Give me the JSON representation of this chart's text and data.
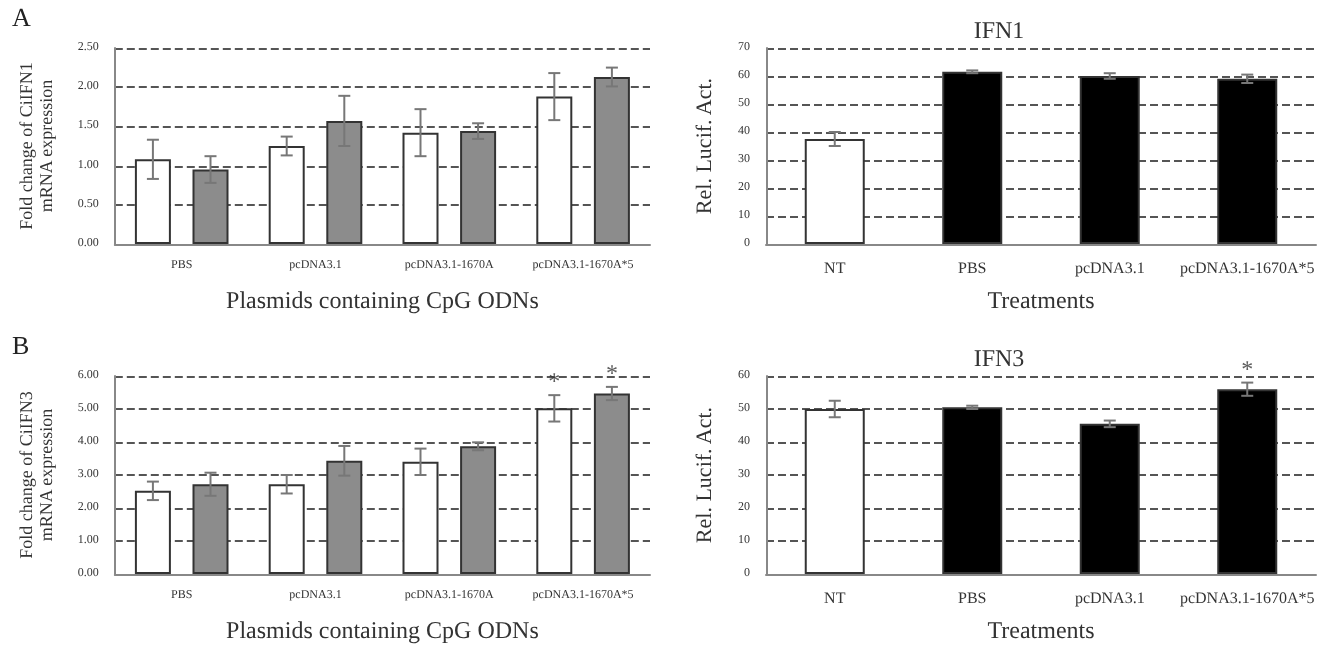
{
  "chart_data": [
    {
      "type": "bar",
      "ylabel": "Fold change of CiIFN1\nmRNA expression",
      "xlabel": "Plasmids containing CpG ODNs",
      "annotations": [
        "A"
      ],
      "categories": [
        "PBS",
        "pcDNA3.1",
        "pcDNA3.1-1670A",
        "pcDNA3.1-1670A*5"
      ],
      "series": [
        {
          "color": "#ffffff",
          "values": [
            1.08,
            1.25,
            1.42,
            1.88
          ],
          "errors": [
            0.25,
            0.12,
            0.3,
            0.3
          ]
        },
        {
          "color": "#8c8c8c",
          "values": [
            0.95,
            1.57,
            1.44,
            2.13
          ],
          "errors": [
            0.17,
            0.32,
            0.1,
            0.12
          ]
        }
      ],
      "ylim": [
        0,
        2.5
      ],
      "yticks": [
        {
          "value": 0,
          "label": "0.00"
        },
        {
          "value": 0.5,
          "label": "0.50"
        },
        {
          "value": 1,
          "label": "1.00"
        },
        {
          "value": 1.5,
          "label": "1.50"
        },
        {
          "value": 2,
          "label": "2.00"
        },
        {
          "value": 2.5,
          "label": "2.50"
        }
      ],
      "grid": "y"
    },
    {
      "type": "bar",
      "title": "IFN1",
      "xlabel": "Treatments",
      "ylabel": "Rel. Lucif. Act.",
      "categories": [
        "NT",
        "PBS",
        "pcDNA3.1",
        "pcDNA3.1-1670A*5"
      ],
      "values": [
        37.5,
        61.5,
        60,
        59
      ],
      "errors": [
        2.5,
        0.5,
        1,
        1.5
      ],
      "colors": [
        "#ffffff",
        "#000000",
        "#000000",
        "#000000"
      ],
      "ylim": [
        0,
        70
      ],
      "yticks": [
        0,
        10,
        20,
        30,
        40,
        50,
        60,
        70
      ],
      "grid": "y"
    },
    {
      "type": "bar",
      "ylabel": "Fold change of CiIFN3\nmRNA expression",
      "xlabel": "Plasmids containing CpG ODNs",
      "annotations": [
        "B",
        "*",
        "*"
      ],
      "categories": [
        "PBS",
        "pcDNA3.1",
        "pcDNA3.1-1670A",
        "pcDNA3.1-1670A*5"
      ],
      "series": [
        {
          "color": "#ffffff",
          "values": [
            2.52,
            2.72,
            3.4,
            5.02
          ],
          "errors": [
            0.28,
            0.28,
            0.4,
            0.4
          ]
        },
        {
          "color": "#8c8c8c",
          "values": [
            2.72,
            3.43,
            3.87,
            5.47
          ],
          "errors": [
            0.35,
            0.45,
            0.12,
            0.2
          ]
        }
      ],
      "ylim": [
        0,
        6
      ],
      "yticks": [
        {
          "value": 0,
          "label": "0.00"
        },
        {
          "value": 1,
          "label": "1.00"
        },
        {
          "value": 2,
          "label": "2.00"
        },
        {
          "value": 3,
          "label": "3.00"
        },
        {
          "value": 4,
          "label": "4.00"
        },
        {
          "value": 5,
          "label": "5.00"
        },
        {
          "value": 6,
          "label": "6.00"
        }
      ],
      "grid": "y"
    },
    {
      "type": "bar",
      "title": "IFN3",
      "xlabel": "Treatments",
      "ylabel": "Rel. Lucif. Act.",
      "annotations": [
        {
          "text": "*",
          "x": "pcDNA3.1-1670A*5",
          "y": 58
        }
      ],
      "categories": [
        "NT",
        "PBS",
        "pcDNA3.1",
        "pcDNA3.1-1670A*5"
      ],
      "values": [
        50,
        50.5,
        45.5,
        56
      ],
      "errors": [
        2.5,
        0.5,
        1,
        2
      ],
      "colors": [
        "#ffffff",
        "#000000",
        "#000000",
        "#000000"
      ],
      "ylim": [
        0,
        60
      ],
      "yticks": [
        0,
        10,
        20,
        30,
        40,
        50,
        60
      ],
      "grid": "y"
    }
  ]
}
